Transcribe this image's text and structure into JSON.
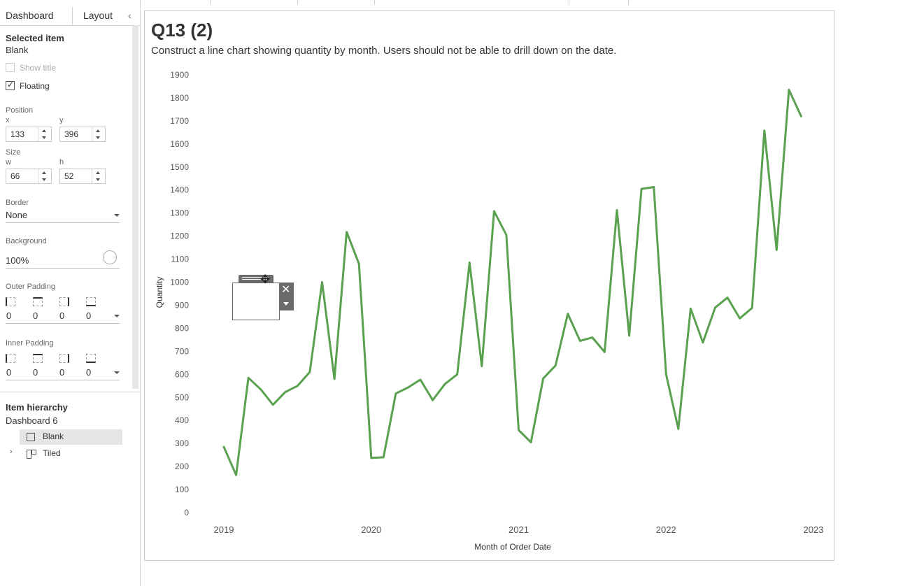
{
  "sidebar": {
    "tabs": [
      "Dashboard",
      "Layout"
    ],
    "collapse_glyph": "‹",
    "selected_item": {
      "heading": "Selected item",
      "value": "Blank"
    },
    "show_title": {
      "label": "Show title",
      "checked": false
    },
    "floating": {
      "label": "Floating",
      "checked": true
    },
    "position": {
      "label": "Position",
      "x_label": "x",
      "x": "133",
      "y_label": "y",
      "y": "396"
    },
    "size": {
      "label": "Size",
      "w_label": "w",
      "w": "66",
      "h_label": "h",
      "h": "52"
    },
    "border": {
      "label": "Border",
      "value": "None"
    },
    "background": {
      "label": "Background",
      "value": "100%"
    },
    "outer_padding": {
      "label": "Outer Padding",
      "values": [
        "0",
        "0",
        "0",
        "0"
      ]
    },
    "inner_padding": {
      "label": "Inner Padding",
      "values": [
        "0",
        "0",
        "0",
        "0"
      ]
    },
    "hierarchy": {
      "heading": "Item hierarchy",
      "root": "Dashboard 6",
      "items": [
        "Blank",
        "Tiled"
      ]
    }
  },
  "dashboard": {
    "title": "Q13 (2)",
    "subtitle": "Construct a line chart showing quantity by month.  Users should not be able to drill down on the date."
  },
  "chart_data": {
    "type": "line",
    "xlabel": "Month of Order Date",
    "ylabel": "Quantity",
    "x_ticks": [
      "2019",
      "2020",
      "2021",
      "2022",
      "2023"
    ],
    "y_ticks": [
      0,
      100,
      200,
      300,
      400,
      500,
      600,
      700,
      800,
      900,
      1000,
      1100,
      1200,
      1300,
      1400,
      1500,
      1600,
      1700,
      1800,
      1900
    ],
    "ylim": [
      0,
      1900
    ],
    "color": "#59a14f",
    "series": [
      {
        "x": [
          "2019-01",
          "2019-02",
          "2019-03",
          "2019-04",
          "2019-05",
          "2019-06",
          "2019-07",
          "2019-08",
          "2019-09",
          "2019-10",
          "2019-11",
          "2019-12",
          "2020-01",
          "2020-02",
          "2020-03",
          "2020-04",
          "2020-05",
          "2020-06",
          "2020-07",
          "2020-08",
          "2020-09",
          "2020-10",
          "2020-11",
          "2020-12",
          "2021-01",
          "2021-02",
          "2021-03",
          "2021-04",
          "2021-05",
          "2021-06",
          "2021-07",
          "2021-08",
          "2021-09",
          "2021-10",
          "2021-11",
          "2021-12",
          "2022-01",
          "2022-02",
          "2022-03",
          "2022-04",
          "2022-05",
          "2022-06",
          "2022-07",
          "2022-08",
          "2022-09",
          "2022-10",
          "2022-11",
          "2022-12"
        ],
        "values": [
          285,
          163,
          585,
          535,
          468,
          523,
          550,
          610,
          1000,
          580,
          1218,
          1080,
          237,
          240,
          517,
          543,
          577,
          488,
          558,
          600,
          1085,
          635,
          1308,
          1205,
          358,
          305,
          582,
          638,
          863,
          745,
          760,
          697,
          1313,
          768,
          1405,
          1413,
          600,
          363,
          885,
          738,
          890,
          933,
          843,
          888,
          1658,
          1140,
          1835,
          1720
        ]
      }
    ]
  }
}
